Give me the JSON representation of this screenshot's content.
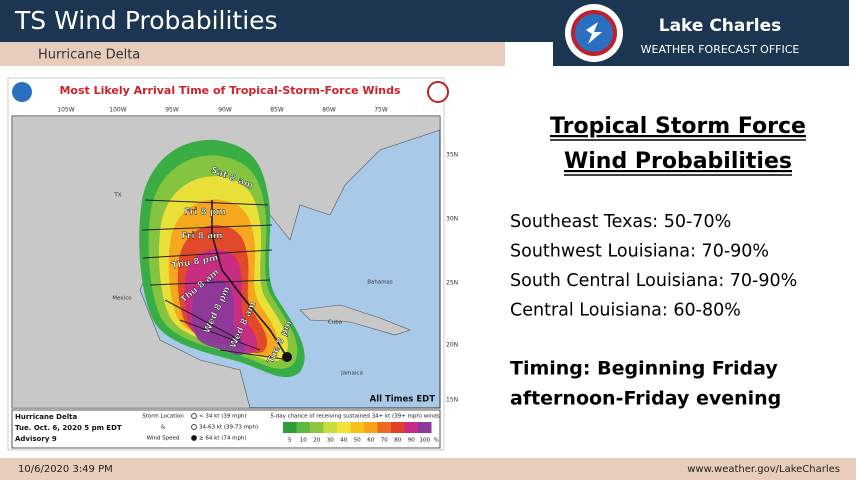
{
  "header": {
    "title": "TS Wind Probabilities",
    "subtitle": "Hurricane Delta",
    "office": "Lake Charles",
    "office_sub": "WEATHER FORECAST OFFICE"
  },
  "map": {
    "title": "Most Likely Arrival Time of Tropical-Storm-Force Winds",
    "longitudes": [
      "105W",
      "100W",
      "95W",
      "90W",
      "85W",
      "80W",
      "75W"
    ],
    "latitudes": [
      "35N",
      "30N",
      "25N",
      "20N",
      "15N"
    ],
    "places": [
      "TX",
      "Mexico",
      "Cuba",
      "Bahamas",
      "Jamaica"
    ],
    "arrival_times": [
      "Sat 8 am",
      "Fri 8 pm",
      "Fri 8 am",
      "Thu 8 pm",
      "Thu 8 am",
      "Wed 8 pm",
      "Wed 8 am",
      "Tue 8 pm"
    ],
    "time_note": "All Times EDT",
    "legend": {
      "storm": "Hurricane Delta",
      "issued": "Tue. Oct. 6, 2020  5 pm EDT",
      "advisory": "Advisory 9",
      "key_title": [
        "Storm Location",
        "&",
        "Wind Speed"
      ],
      "symbols": [
        "< 34 kt (39 mph)",
        "34-63 kt (39-73 mph)",
        "≥ 64 kt (74 mph)"
      ],
      "scale_title": "5-day chance of receiving sustained 34+ kt (39+ mph) winds",
      "scale": [
        5,
        10,
        20,
        30,
        40,
        50,
        60,
        70,
        80,
        90,
        100
      ],
      "scale_unit": "%"
    }
  },
  "content": {
    "heading": [
      "Tropical Storm Force",
      "Wind Probabilities"
    ],
    "items": [
      "Southeast Texas: 50-70%",
      "Southwest Louisiana: 70-90%",
      "South Central Louisiana: 70-90%",
      "Central Louisiana: 60-80%"
    ],
    "timing": [
      "Timing: Beginning Friday",
      "afternoon-Friday evening"
    ]
  },
  "footer": {
    "timestamp": "10/6/2020 3:49 PM",
    "url": "www.weather.gov/LakeCharles"
  }
}
